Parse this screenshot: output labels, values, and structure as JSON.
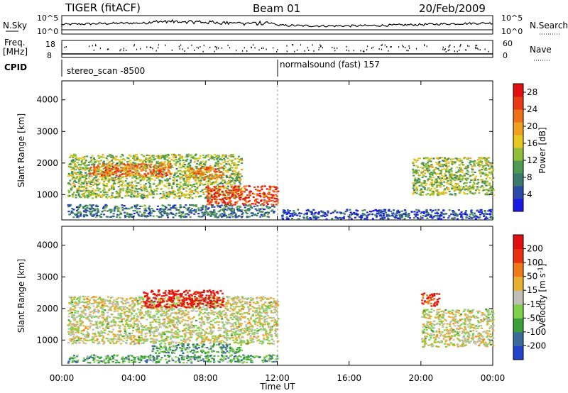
{
  "header": {
    "station": "TIGER (fitACF)",
    "beam": "Beam 01",
    "date": "20/Feb/2009"
  },
  "top_panels": {
    "nsky_label": "N.Sky",
    "nsky_ticks": [
      "10^5",
      "10^0"
    ],
    "nsearch_label": "N.Search",
    "nsearch_ticks": [
      "10^5",
      "10^0"
    ],
    "freq_label": "Freq.",
    "freq_unit": "[MHz]",
    "freq_ticks": [
      "18",
      "8"
    ],
    "nave_label": "Nave",
    "nave_ticks": [
      "60",
      "0"
    ],
    "cpid_label": "CPID",
    "cpid_segments": [
      "stereo_scan -8500",
      "normalsound (fast) 157"
    ]
  },
  "time_axis": {
    "label": "Time UT",
    "ticks": [
      "00:00",
      "04:00",
      "08:00",
      "12:00",
      "16:00",
      "20:00",
      "00:00"
    ]
  },
  "chart_data": [
    {
      "type": "heatmap",
      "x_range_hours": [
        0,
        24
      ],
      "ylabel": "Slant Range [km]",
      "yticks": [
        "1000",
        "2000",
        "3000",
        "4000"
      ],
      "ylim": [
        200,
        4600
      ],
      "colorbar": {
        "label": "Power [dB]",
        "ticks": [
          "4",
          "8",
          "12",
          "16",
          "20",
          "24",
          "28"
        ],
        "colors": [
          "#1a1ae6",
          "#2b4aa8",
          "#3a7a6a",
          "#4e9a52",
          "#8fbf3a",
          "#e6c820",
          "#f0a020",
          "#f07018",
          "#e83a14",
          "#e01010"
        ]
      },
      "regions": [
        {
          "t0": 0.3,
          "t1": 11.8,
          "r0": 300,
          "r1": 700,
          "level": 0.25
        },
        {
          "t0": 0.3,
          "t1": 10,
          "r0": 900,
          "r1": 2300,
          "level": 0.45
        },
        {
          "t0": 1.5,
          "t1": 6,
          "r0": 1600,
          "r1": 2000,
          "level": 0.75
        },
        {
          "t0": 8,
          "t1": 12,
          "r0": 700,
          "r1": 1300,
          "level": 0.85
        },
        {
          "t0": 7,
          "t1": 9,
          "r0": 1500,
          "r1": 1900,
          "level": 0.7
        },
        {
          "t0": 19.5,
          "t1": 24,
          "r0": 1000,
          "r1": 2200,
          "level": 0.45
        },
        {
          "t0": 12.2,
          "t1": 24,
          "r0": 250,
          "r1": 550,
          "level": 0.15
        }
      ]
    },
    {
      "type": "heatmap",
      "x_range_hours": [
        0,
        24
      ],
      "ylabel": "Slant Range [km]",
      "yticks": [
        "1000",
        "2000",
        "3000",
        "4000"
      ],
      "ylim": [
        200,
        4600
      ],
      "colorbar": {
        "label": "Velocity [m s^-1]",
        "ticks": [
          "200",
          "100",
          "50",
          "15",
          "-15",
          "-50",
          "-100",
          "-200"
        ],
        "colors": [
          "#2244cc",
          "#3a6a9a",
          "#3aa03a",
          "#7fd04a",
          "#c0c0b8",
          "#e8b030",
          "#f07a18",
          "#e83010",
          "#e01010"
        ]
      },
      "regions": [
        {
          "t0": 0.3,
          "t1": 12,
          "r0": 900,
          "r1": 2400,
          "level": 0.5
        },
        {
          "t0": 4.5,
          "t1": 9,
          "r0": 2050,
          "r1": 2600,
          "level": 0.95
        },
        {
          "t0": 5,
          "t1": 10,
          "r0": 600,
          "r1": 900,
          "level": 0.3
        },
        {
          "t0": 0.3,
          "t1": 12,
          "r0": 300,
          "r1": 550,
          "level": 0.3
        },
        {
          "t0": 20,
          "t1": 21,
          "r0": 2100,
          "r1": 2500,
          "level": 0.85
        },
        {
          "t0": 20,
          "t1": 24,
          "r0": 800,
          "r1": 2000,
          "level": 0.5
        }
      ]
    }
  ]
}
